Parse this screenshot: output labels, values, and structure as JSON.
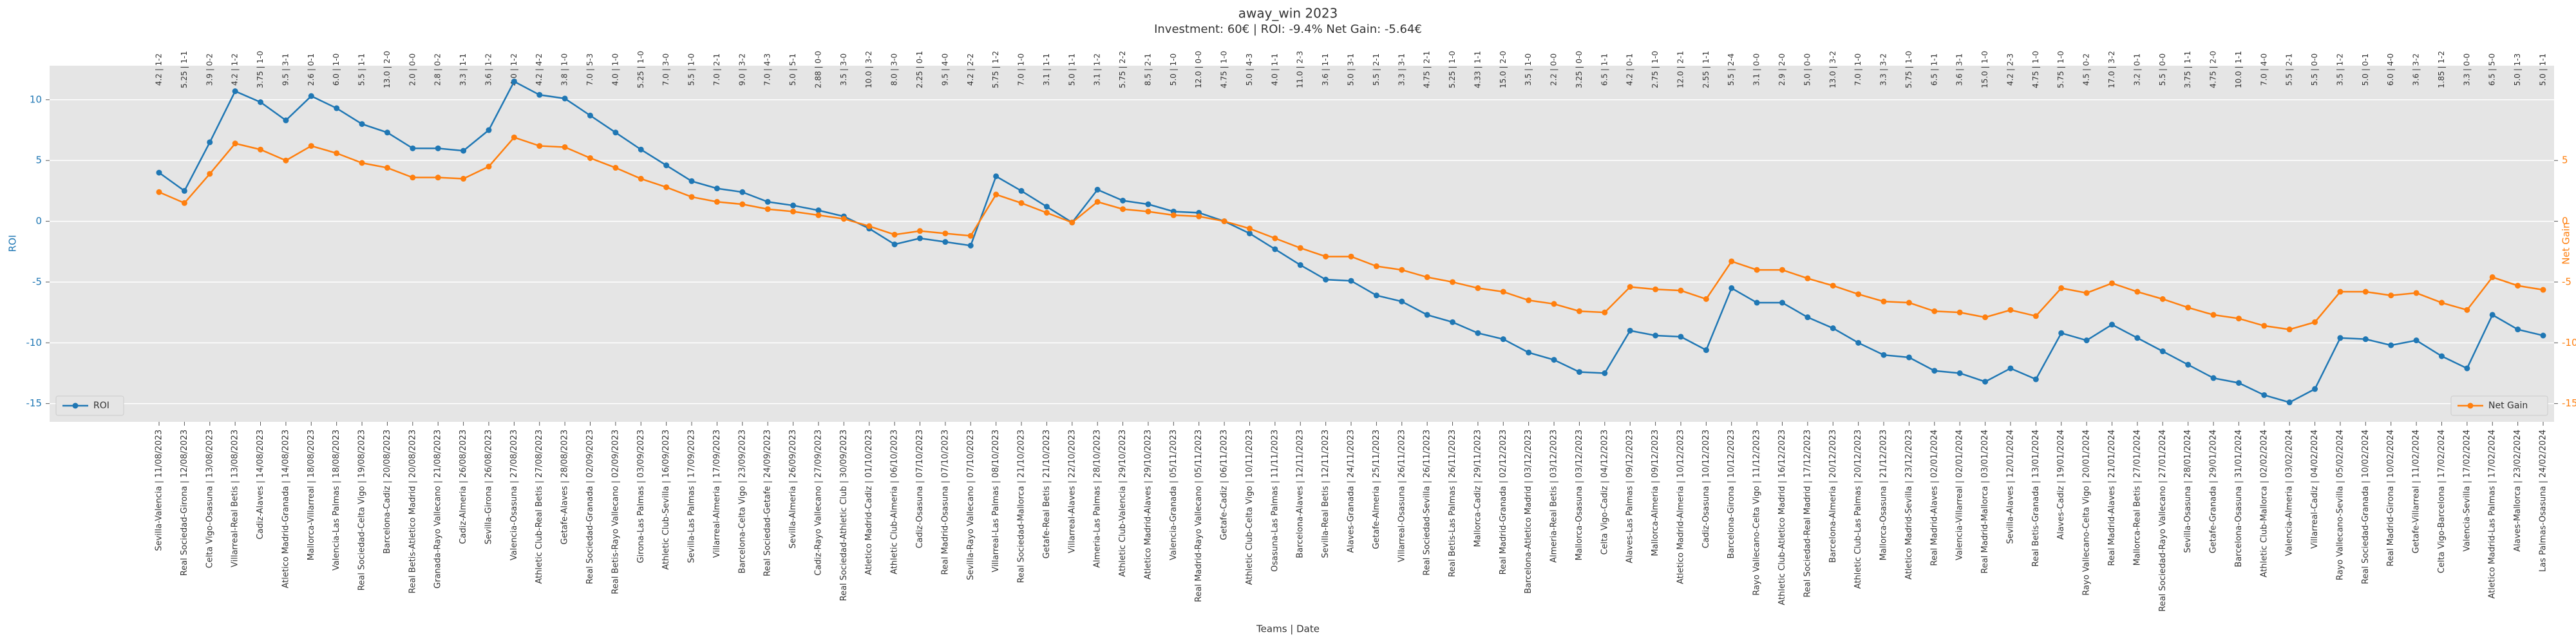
{
  "chart_data": {
    "type": "line",
    "title": "away_win 2023",
    "subtitle": "Investment: 60€ | ROI: -9.4% Net Gain: -5.64€",
    "xlabel": "Teams | Date",
    "ylabel": "ROI",
    "y2label": "Net Gain",
    "categories": [
      "Sevilla-Valencia | 11/08/2023",
      "Real Sociedad-Girona | 12/08/2023",
      "Celta Vigo-Osasuna | 13/08/2023",
      "Villarreal-Real Betis | 13/08/2023",
      "Cadiz-Alaves | 14/08/2023",
      "Atletico Madrid-Granada | 14/08/2023",
      "Mallorca-Villarreal | 18/08/2023",
      "Valencia-Las Palmas | 18/08/2023",
      "Real Sociedad-Celta Vigo | 19/08/2023",
      "Barcelona-Cadiz | 20/08/2023",
      "Real Betis-Atletico Madrid | 20/08/2023",
      "Granada-Rayo Vallecano | 21/08/2023",
      "Cadiz-Almeria | 26/08/2023",
      "Sevilla-Girona | 26/08/2023",
      "Valencia-Osasuna | 27/08/2023",
      "Athletic Club-Real Betis | 27/08/2023",
      "Getafe-Alaves | 28/08/2023",
      "Real Sociedad-Granada | 02/09/2023",
      "Real Betis-Rayo Vallecano | 02/09/2023",
      "Girona-Las Palmas | 03/09/2023",
      "Athletic Club-Sevilla | 16/09/2023",
      "Sevilla-Las Palmas | 17/09/2023",
      "Villarreal-Almeria | 17/09/2023",
      "Barcelona-Celta Vigo | 23/09/2023",
      "Real Sociedad-Getafe | 24/09/2023",
      "Sevilla-Almeria | 26/09/2023",
      "Cadiz-Rayo Vallecano | 27/09/2023",
      "Real Sociedad-Athletic Club | 30/09/2023",
      "Atletico Madrid-Cadiz | 01/10/2023",
      "Athletic Club-Almeria | 06/10/2023",
      "Cadiz-Osasuna | 07/10/2023",
      "Real Madrid-Osasuna | 07/10/2023",
      "Sevilla-Rayo Vallecano | 07/10/2023",
      "Villarreal-Las Palmas | 08/10/2023",
      "Real Sociedad-Mallorca | 21/10/2023",
      "Getafe-Real Betis | 21/10/2023",
      "Villarreal-Alaves | 22/10/2023",
      "Almeria-Las Palmas | 28/10/2023",
      "Athletic Club-Valencia | 29/10/2023",
      "Atletico Madrid-Alaves | 29/10/2023",
      "Valencia-Granada | 05/11/2023",
      "Real Madrid-Rayo Vallecano | 05/11/2023",
      "Getafe-Cadiz | 06/11/2023",
      "Athletic Club-Celta Vigo | 10/11/2023",
      "Osasuna-Las Palmas | 11/11/2023",
      "Barcelona-Alaves | 12/11/2023",
      "Sevilla-Real Betis | 12/11/2023",
      "Alaves-Granada | 24/11/2023",
      "Getafe-Almeria | 25/11/2023",
      "Villarreal-Osasuna | 26/11/2023",
      "Real Sociedad-Sevilla | 26/11/2023",
      "Real Betis-Las Palmas | 26/11/2023",
      "Mallorca-Cadiz | 29/11/2023",
      "Real Madrid-Granada | 02/12/2023",
      "Barcelona-Atletico Madrid | 03/12/2023",
      "Almeria-Real Betis | 03/12/2023",
      "Mallorca-Osasuna | 03/12/2023",
      "Celta Vigo-Cadiz | 04/12/2023",
      "Alaves-Las Palmas | 09/12/2023",
      "Mallorca-Almeria | 09/12/2023",
      "Atletico Madrid-Almeria | 10/12/2023",
      "Cadiz-Osasuna | 10/12/2023",
      "Barcelona-Girona | 10/12/2023",
      "Rayo Vallecano-Celta Vigo | 11/12/2023",
      "Athletic Club-Atletico Madrid | 16/12/2023",
      "Real Sociedad-Real Madrid | 17/12/2023",
      "Barcelona-Almeria | 20/12/2023",
      "Athletic Club-Las Palmas | 20/12/2023",
      "Mallorca-Osasuna | 21/12/2023",
      "Atletico Madrid-Sevilla | 23/12/2023",
      "Real Madrid-Alaves | 02/01/2024",
      "Valencia-Villarreal | 02/01/2024",
      "Real Madrid-Mallorca | 03/01/2024",
      "Sevilla-Alaves | 12/01/2024",
      "Real Betis-Granada | 13/01/2024",
      "Alaves-Cadiz | 19/01/2024",
      "Rayo Vallecano-Celta Vigo | 20/01/2024",
      "Real Madrid-Alaves | 21/01/2024",
      "Mallorca-Real Betis | 27/01/2024",
      "Real Sociedad-Rayo Vallecano | 27/01/2024",
      "Sevilla-Osasuna | 28/01/2024",
      "Getafe-Granada | 29/01/2024",
      "Barcelona-Osasuna | 31/01/2024",
      "Athletic Club-Mallorca | 02/02/2024",
      "Valencia-Almeria | 03/02/2024",
      "Villarreal-Cadiz | 04/02/2024",
      "Rayo Vallecano-Sevilla | 05/02/2024",
      "Real Sociedad-Granada | 10/02/2024",
      "Real Madrid-Girona | 10/02/2024",
      "Getafe-Villarreal | 11/02/2024",
      "Celta Vigo-Barcelona | 17/02/2024",
      "Valencia-Sevilla | 17/02/2024",
      "Atletico Madrid-Las Palmas | 17/02/2024",
      "Alaves-Mallorca | 23/02/2024",
      "Las Palmas-Osasuna | 24/02/2024"
    ],
    "annotations": [
      "4.2 | 1-2",
      "5.25 | 1-1",
      "3.9 | 0-2",
      "4.2 | 1-2",
      "3.75 | 1-0",
      "9.5 | 3-1",
      "2.6 | 0-1",
      "6.0 | 1-0",
      "5.5 | 1-1",
      "13.0 | 2-0",
      "2.0 | 0-0",
      "2.8 | 0-2",
      "3.3 | 1-1",
      "3.6 | 1-2",
      "4.0 | 1-2",
      "4.2 | 4-2",
      "3.8 | 1-0",
      "7.0 | 5-3",
      "4.0 | 1-0",
      "5.25 | 1-0",
      "7.0 | 3-0",
      "5.5 | 1-0",
      "7.0 | 2-1",
      "9.0 | 3-2",
      "7.0 | 4-3",
      "5.0 | 5-1",
      "2.88 | 0-0",
      "3.5 | 3-0",
      "10.0 | 3-2",
      "8.0 | 3-0",
      "2.25 | 0-1",
      "9.5 | 4-0",
      "4.2 | 2-2",
      "5.75 | 1-2",
      "7.0 | 1-0",
      "3.1 | 1-1",
      "5.0 | 1-1",
      "3.1 | 1-2",
      "5.75 | 2-2",
      "8.5 | 2-1",
      "5.0 | 1-0",
      "12.0 | 0-0",
      "4.75 | 1-0",
      "5.0 | 4-3",
      "4.0 | 1-1",
      "11.0 | 2-3",
      "3.6 | 1-1",
      "5.0 | 3-1",
      "5.5 | 2-1",
      "3.3 | 3-1",
      "4.75 | 2-1",
      "5.25 | 1-0",
      "4.33 | 1-1",
      "15.0 | 2-0",
      "3.5 | 1-0",
      "2.2 | 0-0",
      "3.25 | 0-0",
      "6.5 | 1-1",
      "4.2 | 0-1",
      "2.75 | 1-0",
      "12.0 | 2-1",
      "2.55 | 1-1",
      "5.5 | 2-4",
      "3.1 | 0-0",
      "2.9 | 2-0",
      "5.0 | 0-0",
      "13.0 | 3-2",
      "7.0 | 1-0",
      "3.3 | 3-2",
      "5.75 | 1-0",
      "6.5 | 1-1",
      "3.6 | 3-1",
      "15.0 | 1-0",
      "4.2 | 2-3",
      "4.75 | 1-0",
      "5.75 | 1-0",
      "4.5 | 0-2",
      "17.0 | 3-2",
      "3.2 | 0-1",
      "5.5 | 0-0",
      "3.75 | 1-1",
      "4.75 | 2-0",
      "10.0 | 1-1",
      "7.0 | 4-0",
      "5.5 | 2-1",
      "5.5 | 0-0",
      "3.5 | 1-2",
      "5.0 | 0-1",
      "6.0 | 4-0",
      "3.6 | 3-2",
      "1.85 | 1-2",
      "3.3 | 0-0",
      "6.5 | 5-0",
      "5.0 | 1-3",
      "5.0 | 1-1"
    ],
    "series": [
      {
        "name": "ROI",
        "color": "#1f77b4",
        "axis": "y",
        "legend": "lower left",
        "values": [
          4.0,
          2.5,
          6.5,
          10.7,
          9.8,
          8.3,
          10.3,
          9.3,
          8.0,
          7.3,
          6.0,
          6.0,
          5.8,
          7.5,
          11.5,
          10.4,
          10.1,
          8.7,
          7.3,
          5.9,
          4.6,
          3.3,
          2.7,
          2.4,
          1.6,
          1.3,
          0.9,
          0.4,
          -0.6,
          -1.9,
          -1.4,
          -1.7,
          -2.0,
          3.7,
          2.5,
          1.2,
          -0.1,
          2.6,
          1.7,
          1.4,
          0.8,
          0.7,
          0.0,
          -1.0,
          -2.3,
          -3.6,
          -4.8,
          -4.9,
          -6.1,
          -6.6,
          -7.7,
          -8.3,
          -9.2,
          -9.7,
          -10.8,
          -11.4,
          -12.4,
          -12.5,
          -9.0,
          -9.4,
          -9.5,
          -10.6,
          -5.5,
          -6.7,
          -6.7,
          -7.9,
          -8.8,
          -10.0,
          -11.0,
          -11.2,
          -12.3,
          -12.5,
          -13.2,
          -12.1,
          -13.0,
          -9.2,
          -9.8,
          -8.5,
          -9.6,
          -10.7,
          -11.8,
          -12.9,
          -13.3,
          -14.3,
          -14.9,
          -13.8,
          -9.6,
          -9.7,
          -10.2,
          -9.8,
          -11.1,
          -12.1,
          -7.7,
          -8.9,
          -9.4
        ]
      },
      {
        "name": "Net Gain",
        "color": "#ff7f0e",
        "axis": "y2",
        "legend": "lower right",
        "values": [
          2.4,
          1.5,
          3.9,
          6.4,
          5.9,
          5.0,
          6.2,
          5.6,
          4.8,
          4.4,
          3.6,
          3.6,
          3.5,
          4.5,
          6.9,
          6.2,
          6.1,
          5.2,
          4.4,
          3.5,
          2.8,
          2.0,
          1.6,
          1.4,
          1.0,
          0.8,
          0.5,
          0.2,
          -0.4,
          -1.1,
          -0.8,
          -1.0,
          -1.2,
          2.2,
          1.5,
          0.7,
          -0.1,
          1.6,
          1.0,
          0.8,
          0.5,
          0.4,
          0.0,
          -0.6,
          -1.4,
          -2.2,
          -2.9,
          -2.9,
          -3.7,
          -4.0,
          -4.6,
          -5.0,
          -5.5,
          -5.8,
          -6.5,
          -6.8,
          -7.4,
          -7.5,
          -5.4,
          -5.6,
          -5.7,
          -6.4,
          -3.3,
          -4.0,
          -4.0,
          -4.7,
          -5.3,
          -6.0,
          -6.6,
          -6.7,
          -7.4,
          -7.5,
          -7.9,
          -7.3,
          -7.8,
          -5.5,
          -5.9,
          -5.1,
          -5.8,
          -6.4,
          -7.1,
          -7.7,
          -8.0,
          -8.6,
          -8.9,
          -8.3,
          -5.8,
          -5.8,
          -6.1,
          -5.9,
          -6.7,
          -7.3,
          -4.6,
          -5.3,
          -5.64
        ]
      }
    ],
    "ylim": [
      -16.5,
      12.8
    ],
    "yticks": [
      -15,
      -10,
      -5,
      0,
      5,
      10
    ],
    "y2lim": [
      -16.5,
      12.8
    ],
    "y2ticks": [
      -15,
      -10,
      -5,
      0,
      5
    ],
    "grid": true
  }
}
